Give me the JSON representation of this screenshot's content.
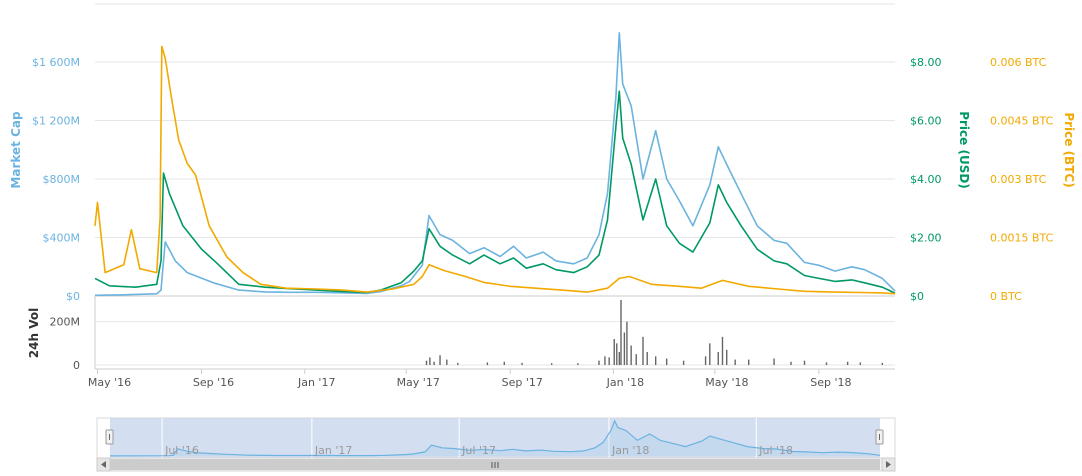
{
  "chart_data": {
    "type": "line",
    "x_range": [
      "2016-04-28",
      "2018-11-30"
    ],
    "x_ticks": [
      {
        "date": "2016-05-01",
        "label": "May '16"
      },
      {
        "date": "2016-09-01",
        "label": "Sep '16"
      },
      {
        "date": "2017-01-01",
        "label": "Jan '17"
      },
      {
        "date": "2017-05-01",
        "label": "May '17"
      },
      {
        "date": "2017-09-01",
        "label": "Sep '17"
      },
      {
        "date": "2018-01-01",
        "label": "Jan '18"
      },
      {
        "date": "2018-05-01",
        "label": "May '18"
      },
      {
        "date": "2018-09-01",
        "label": "Sep '18"
      }
    ],
    "axes": {
      "market_cap": {
        "label": "Market Cap",
        "range": [
          0,
          1600
        ],
        "ticks": [
          "$0",
          "$400M",
          "$800M",
          "$1 200M",
          "$1 600M"
        ],
        "color": "#6cb3e0"
      },
      "price_usd": {
        "label": "Price (USD)",
        "range": [
          0,
          8
        ],
        "ticks": [
          "$0",
          "$2.00",
          "$4.00",
          "$6.00",
          "$8.00"
        ],
        "color": "#009966"
      },
      "price_btc": {
        "label": "Price (BTC)",
        "range": [
          0,
          0.006
        ],
        "ticks": [
          "0 BTC",
          "0.0015 BTC",
          "0.003 BTC",
          "0.0045 BTC",
          "0.006 BTC"
        ],
        "color": "#f2a900"
      },
      "volume": {
        "label": "24h Vol",
        "range": [
          0,
          300
        ],
        "ticks": [
          "0",
          "200M"
        ]
      }
    },
    "series": [
      {
        "key": "market_cap",
        "axis": "market_cap",
        "color": "#6cb3e0",
        "unit": "M USD",
        "points": [
          [
            "2016-04-28",
            5
          ],
          [
            "2016-06-01",
            8
          ],
          [
            "2016-07-10",
            15
          ],
          [
            "2016-07-15",
            40
          ],
          [
            "2016-07-20",
            370
          ],
          [
            "2016-08-01",
            240
          ],
          [
            "2016-08-15",
            160
          ],
          [
            "2016-09-15",
            90
          ],
          [
            "2016-10-15",
            40
          ],
          [
            "2016-11-15",
            28
          ],
          [
            "2016-12-15",
            25
          ],
          [
            "2017-01-15",
            25
          ],
          [
            "2017-02-15",
            22
          ],
          [
            "2017-03-15",
            18
          ],
          [
            "2017-04-01",
            30
          ],
          [
            "2017-04-25",
            70
          ],
          [
            "2017-05-05",
            100
          ],
          [
            "2017-05-20",
            210
          ],
          [
            "2017-05-28",
            550
          ],
          [
            "2017-06-10",
            420
          ],
          [
            "2017-06-25",
            380
          ],
          [
            "2017-07-15",
            290
          ],
          [
            "2017-08-01",
            330
          ],
          [
            "2017-08-20",
            270
          ],
          [
            "2017-09-05",
            340
          ],
          [
            "2017-09-20",
            260
          ],
          [
            "2017-10-10",
            300
          ],
          [
            "2017-10-25",
            240
          ],
          [
            "2017-11-15",
            220
          ],
          [
            "2017-12-01",
            260
          ],
          [
            "2017-12-15",
            420
          ],
          [
            "2017-12-25",
            700
          ],
          [
            "2018-01-04",
            1360
          ],
          [
            "2018-01-08",
            1800
          ],
          [
            "2018-01-12",
            1450
          ],
          [
            "2018-01-22",
            1300
          ],
          [
            "2018-02-05",
            800
          ],
          [
            "2018-02-20",
            1130
          ],
          [
            "2018-03-05",
            800
          ],
          [
            "2018-03-20",
            650
          ],
          [
            "2018-04-05",
            480
          ],
          [
            "2018-04-25",
            760
          ],
          [
            "2018-05-05",
            1020
          ],
          [
            "2018-05-15",
            900
          ],
          [
            "2018-06-01",
            700
          ],
          [
            "2018-06-20",
            480
          ],
          [
            "2018-07-10",
            380
          ],
          [
            "2018-07-25",
            360
          ],
          [
            "2018-08-15",
            230
          ],
          [
            "2018-09-01",
            210
          ],
          [
            "2018-09-20",
            170
          ],
          [
            "2018-10-10",
            200
          ],
          [
            "2018-10-25",
            180
          ],
          [
            "2018-11-15",
            120
          ],
          [
            "2018-11-30",
            35
          ]
        ]
      },
      {
        "key": "price_usd",
        "axis": "price_usd",
        "color": "#009966",
        "unit": "USD",
        "points": [
          [
            "2016-04-28",
            0.6
          ],
          [
            "2016-05-15",
            0.35
          ],
          [
            "2016-06-15",
            0.3
          ],
          [
            "2016-07-10",
            0.4
          ],
          [
            "2016-07-15",
            1.2
          ],
          [
            "2016-07-18",
            4.2
          ],
          [
            "2016-07-25",
            3.5
          ],
          [
            "2016-08-10",
            2.4
          ],
          [
            "2016-09-01",
            1.6
          ],
          [
            "2016-09-20",
            1.1
          ],
          [
            "2016-10-15",
            0.4
          ],
          [
            "2016-11-15",
            0.3
          ],
          [
            "2016-12-15",
            0.25
          ],
          [
            "2017-01-15",
            0.2
          ],
          [
            "2017-02-15",
            0.15
          ],
          [
            "2017-03-15",
            0.12
          ],
          [
            "2017-04-01",
            0.2
          ],
          [
            "2017-04-25",
            0.45
          ],
          [
            "2017-05-10",
            0.85
          ],
          [
            "2017-05-20",
            1.2
          ],
          [
            "2017-05-28",
            2.3
          ],
          [
            "2017-06-10",
            1.7
          ],
          [
            "2017-06-25",
            1.4
          ],
          [
            "2017-07-15",
            1.1
          ],
          [
            "2017-08-01",
            1.4
          ],
          [
            "2017-08-20",
            1.1
          ],
          [
            "2017-09-05",
            1.3
          ],
          [
            "2017-09-20",
            0.95
          ],
          [
            "2017-10-10",
            1.1
          ],
          [
            "2017-10-25",
            0.9
          ],
          [
            "2017-11-15",
            0.8
          ],
          [
            "2017-12-01",
            1.0
          ],
          [
            "2017-12-15",
            1.4
          ],
          [
            "2017-12-25",
            2.6
          ],
          [
            "2018-01-04",
            5.8
          ],
          [
            "2018-01-08",
            7.0
          ],
          [
            "2018-01-12",
            5.4
          ],
          [
            "2018-01-22",
            4.5
          ],
          [
            "2018-02-05",
            2.6
          ],
          [
            "2018-02-20",
            4.0
          ],
          [
            "2018-03-05",
            2.4
          ],
          [
            "2018-03-20",
            1.8
          ],
          [
            "2018-04-05",
            1.5
          ],
          [
            "2018-04-25",
            2.5
          ],
          [
            "2018-05-05",
            3.8
          ],
          [
            "2018-05-15",
            3.2
          ],
          [
            "2018-06-01",
            2.4
          ],
          [
            "2018-06-20",
            1.6
          ],
          [
            "2018-07-10",
            1.2
          ],
          [
            "2018-07-25",
            1.1
          ],
          [
            "2018-08-15",
            0.7
          ],
          [
            "2018-09-01",
            0.6
          ],
          [
            "2018-09-20",
            0.5
          ],
          [
            "2018-10-10",
            0.55
          ],
          [
            "2018-10-25",
            0.45
          ],
          [
            "2018-11-15",
            0.3
          ],
          [
            "2018-11-30",
            0.1
          ]
        ]
      },
      {
        "key": "price_btc",
        "axis": "price_btc",
        "color": "#f2a900",
        "unit": "BTC",
        "points": [
          [
            "2016-04-28",
            0.0018
          ],
          [
            "2016-05-01",
            0.0024
          ],
          [
            "2016-05-10",
            0.0006
          ],
          [
            "2016-06-01",
            0.0008
          ],
          [
            "2016-06-10",
            0.0017
          ],
          [
            "2016-06-20",
            0.0007
          ],
          [
            "2016-07-10",
            0.0006
          ],
          [
            "2016-07-14",
            0.002
          ],
          [
            "2016-07-16",
            0.0064
          ],
          [
            "2016-07-20",
            0.0061
          ],
          [
            "2016-07-28",
            0.005
          ],
          [
            "2016-08-05",
            0.004
          ],
          [
            "2016-08-15",
            0.0034
          ],
          [
            "2016-08-25",
            0.0031
          ],
          [
            "2016-09-10",
            0.0018
          ],
          [
            "2016-10-01",
            0.001
          ],
          [
            "2016-10-20",
            0.0006
          ],
          [
            "2016-11-10",
            0.0003
          ],
          [
            "2016-12-10",
            0.0002
          ],
          [
            "2017-01-15",
            0.00018
          ],
          [
            "2017-02-15",
            0.00015
          ],
          [
            "2017-03-15",
            0.0001
          ],
          [
            "2017-04-15",
            0.00018
          ],
          [
            "2017-05-10",
            0.0003
          ],
          [
            "2017-05-20",
            0.0005
          ],
          [
            "2017-05-28",
            0.0008
          ],
          [
            "2017-06-15",
            0.00065
          ],
          [
            "2017-07-10",
            0.0005
          ],
          [
            "2017-08-01",
            0.00035
          ],
          [
            "2017-09-01",
            0.00025
          ],
          [
            "2017-10-01",
            0.0002
          ],
          [
            "2017-11-01",
            0.00015
          ],
          [
            "2017-12-01",
            0.0001
          ],
          [
            "2017-12-25",
            0.0002
          ],
          [
            "2018-01-08",
            0.00045
          ],
          [
            "2018-01-20",
            0.0005
          ],
          [
            "2018-02-15",
            0.0003
          ],
          [
            "2018-03-20",
            0.00025
          ],
          [
            "2018-04-15",
            0.0002
          ],
          [
            "2018-05-10",
            0.0004
          ],
          [
            "2018-06-10",
            0.00025
          ],
          [
            "2018-07-15",
            0.00018
          ],
          [
            "2018-08-15",
            0.00012
          ],
          [
            "2018-09-20",
            0.0001
          ],
          [
            "2018-10-20",
            9e-05
          ],
          [
            "2018-11-15",
            8e-05
          ],
          [
            "2018-11-30",
            6e-05
          ]
        ]
      }
    ],
    "volume_bars": [
      [
        "2017-05-25",
        20
      ],
      [
        "2017-05-29",
        35
      ],
      [
        "2017-06-03",
        15
      ],
      [
        "2017-06-10",
        45
      ],
      [
        "2017-06-18",
        25
      ],
      [
        "2017-07-01",
        10
      ],
      [
        "2017-08-05",
        12
      ],
      [
        "2017-08-25",
        15
      ],
      [
        "2017-09-15",
        10
      ],
      [
        "2017-10-20",
        8
      ],
      [
        "2017-11-20",
        8
      ],
      [
        "2017-12-15",
        20
      ],
      [
        "2017-12-22",
        40
      ],
      [
        "2017-12-27",
        35
      ],
      [
        "2018-01-02",
        120
      ],
      [
        "2018-01-05",
        100
      ],
      [
        "2018-01-08",
        60
      ],
      [
        "2018-01-10",
        330
      ],
      [
        "2018-01-14",
        150
      ],
      [
        "2018-01-17",
        200
      ],
      [
        "2018-01-22",
        90
      ],
      [
        "2018-01-28",
        50
      ],
      [
        "2018-02-05",
        130
      ],
      [
        "2018-02-10",
        60
      ],
      [
        "2018-02-20",
        40
      ],
      [
        "2018-03-05",
        30
      ],
      [
        "2018-03-25",
        20
      ],
      [
        "2018-04-20",
        40
      ],
      [
        "2018-04-25",
        100
      ],
      [
        "2018-05-05",
        60
      ],
      [
        "2018-05-10",
        130
      ],
      [
        "2018-05-15",
        70
      ],
      [
        "2018-05-25",
        25
      ],
      [
        "2018-06-10",
        25
      ],
      [
        "2018-07-10",
        30
      ],
      [
        "2018-07-30",
        15
      ],
      [
        "2018-08-15",
        20
      ],
      [
        "2018-09-10",
        12
      ],
      [
        "2018-10-05",
        15
      ],
      [
        "2018-10-20",
        12
      ],
      [
        "2018-11-15",
        10
      ]
    ],
    "navigator": {
      "labels": [
        "Jul '16",
        "Jan '17",
        "Jul '17",
        "Jan '18",
        "Jul '18"
      ],
      "label_dates": [
        "2016-07-01",
        "2017-01-01",
        "2017-07-01",
        "2018-01-01",
        "2018-07-01"
      ]
    }
  }
}
